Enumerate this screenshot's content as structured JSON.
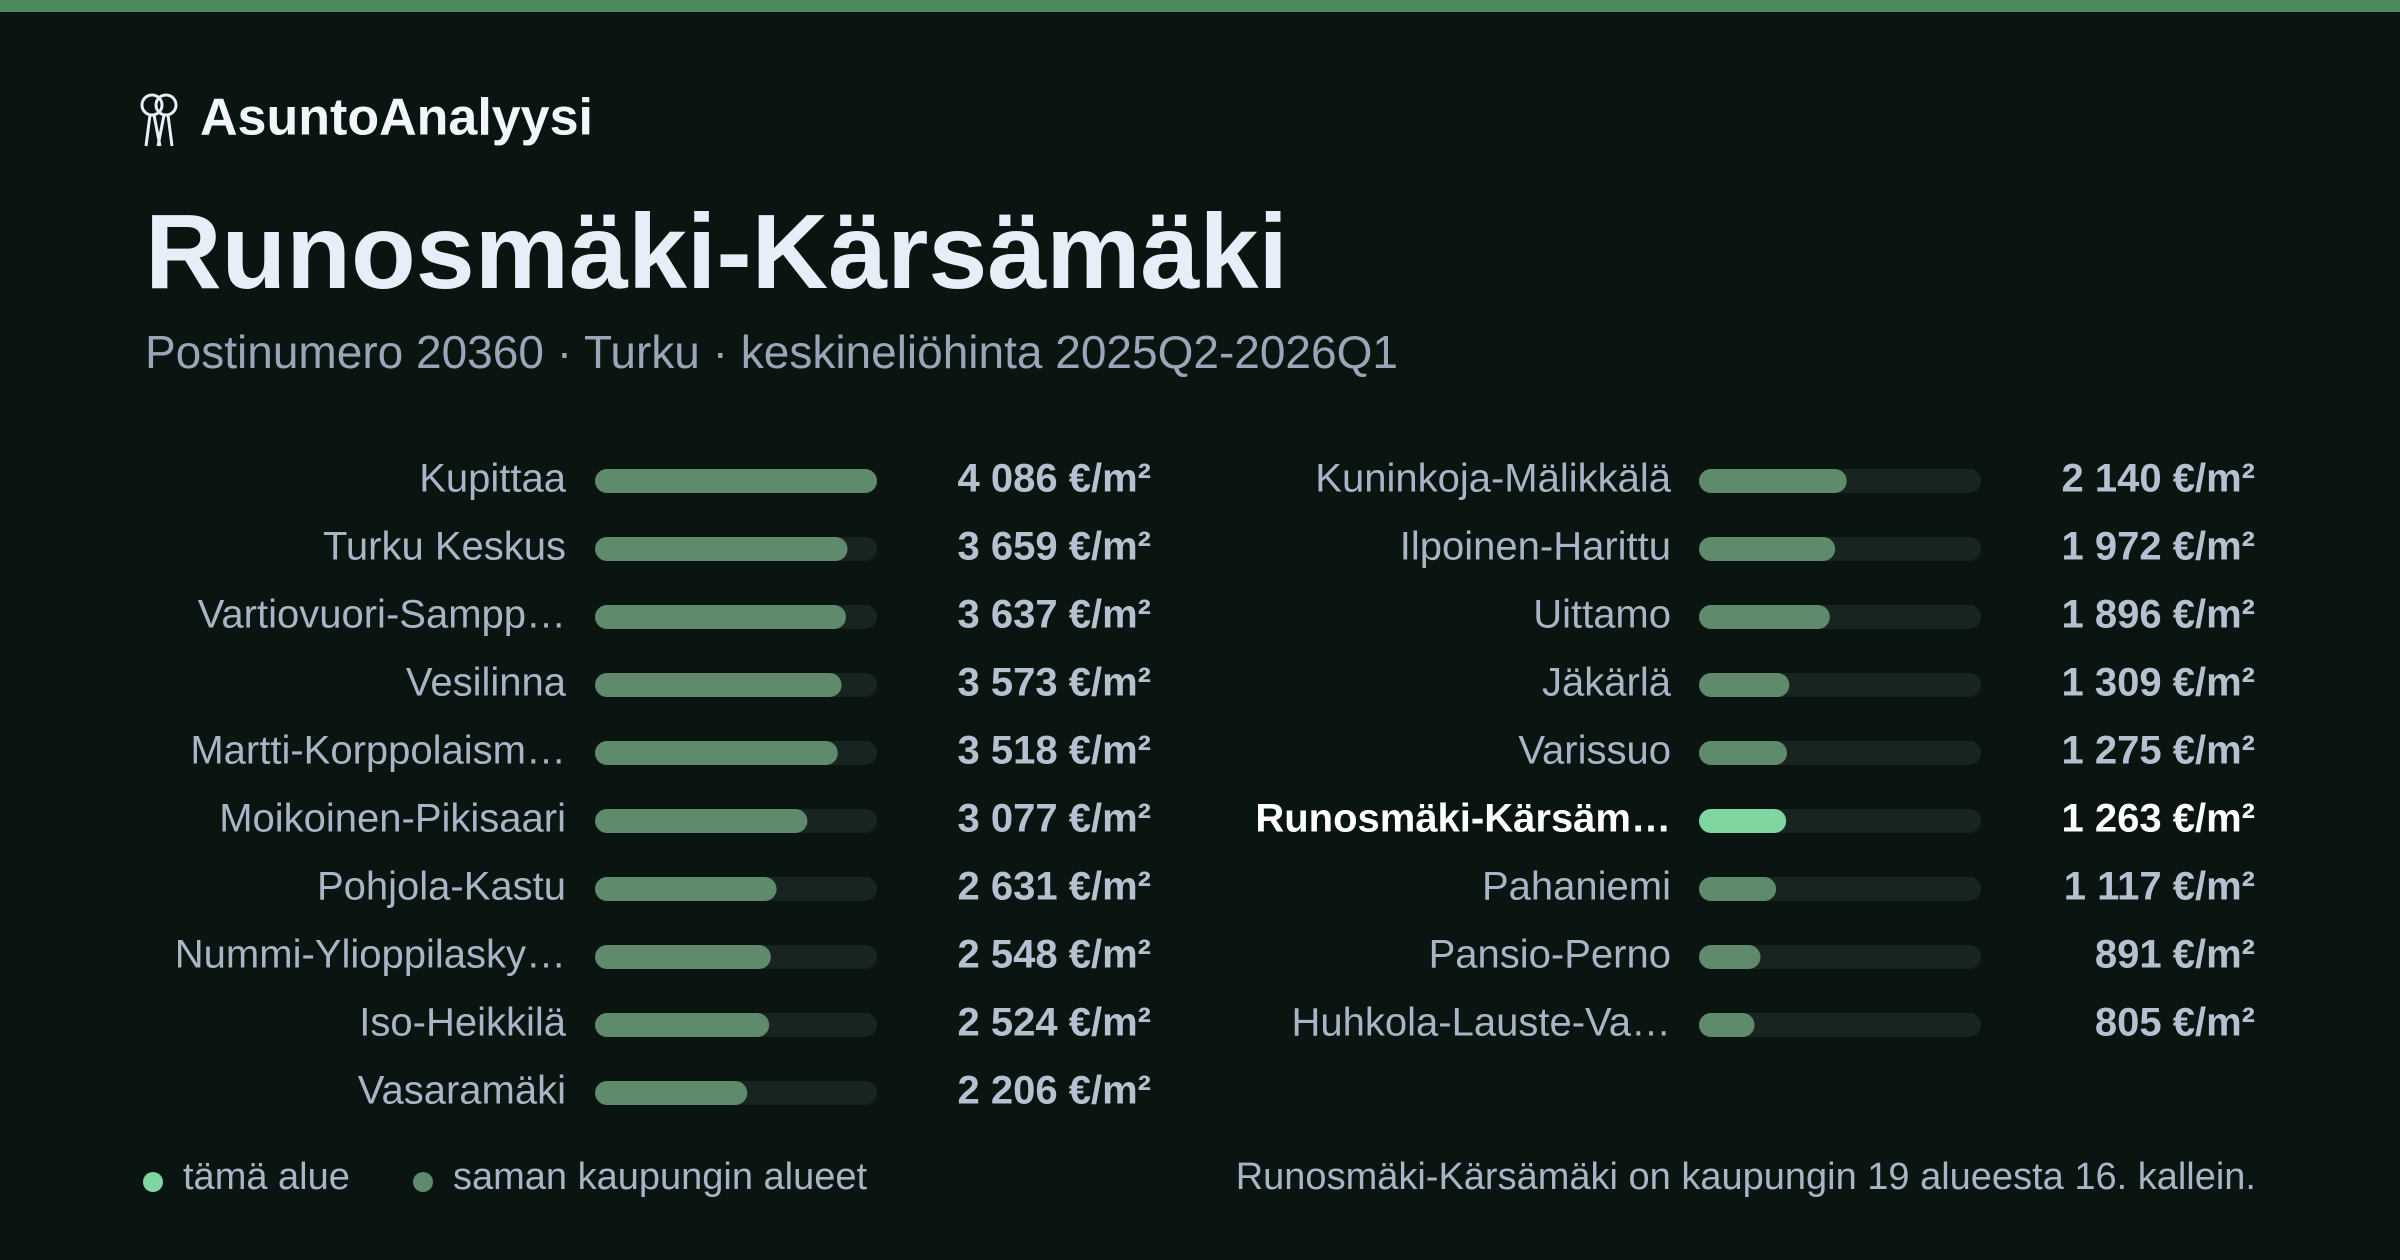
{
  "chart_data": {
    "type": "bar",
    "brand": "AsuntoAnalyysi",
    "title": "Runosmäki-Kärsämäki",
    "subtitle": "Postinumero 20360 · Turku · keskineliöhinta 2025Q2-2026Q1",
    "categories": [
      "Kupittaa",
      "Turku Keskus",
      "Vartiovuori-Sampp…",
      "Vesilinna",
      "Martti-Korppolaism…",
      "Moikoinen-Pikisaari",
      "Pohjola-Kastu",
      "Nummi-Ylioppilasky…",
      "Iso-Heikkilä",
      "Vasaramäki",
      "Kuninkoja-Mälikkälä",
      "Ilpoinen-Harittu",
      "Uittamo",
      "Jäkärlä",
      "Varissuo",
      "Runosmäki-Kärsäm…",
      "Pahaniemi",
      "Pansio-Perno",
      "Huhkola-Lauste-Va…"
    ],
    "values": [
      4086,
      3659,
      3637,
      3573,
      3518,
      3077,
      2631,
      2548,
      2524,
      2206,
      2140,
      1972,
      1896,
      1309,
      1275,
      1263,
      1117,
      891,
      805
    ],
    "value_labels": [
      "4 086 €/m²",
      "3 659 €/m²",
      "3 637 €/m²",
      "3 573 €/m²",
      "3 518 €/m²",
      "3 077 €/m²",
      "2 631 €/m²",
      "2 548 €/m²",
      "2 524 €/m²",
      "2 206 €/m²",
      "2 140 €/m²",
      "1 972 €/m²",
      "1 896 €/m²",
      "1 309 €/m²",
      "1 275 €/m²",
      "1 263 €/m²",
      "1 117 €/m²",
      "891 €/m²",
      "805 €/m²"
    ],
    "colors": [
      "#5f8a6c",
      "#5f8a6c",
      "#5f8a6c",
      "#5f8a6c",
      "#5f8a6c",
      "#5f8a6c",
      "#5f8a6c",
      "#5f8a6c",
      "#5f8a6c",
      "#5f8a6c",
      "#5f8a6c",
      "#5f8a6c",
      "#5f8a6c",
      "#5f8a6c",
      "#5f8a6c",
      "#7fd6a0",
      "#5f8a6c",
      "#5f8a6c",
      "#5f8a6c"
    ],
    "xlim": [
      0,
      4086
    ],
    "legend": [
      {
        "name": "tämä alue",
        "color": "#7fd6a0"
      },
      {
        "name": "saman kaupungin alueet",
        "color": "#5f8a6c"
      }
    ],
    "note": "Runosmäki-Kärsämäki on kaupungin 19 alueesta 16. kallein."
  }
}
